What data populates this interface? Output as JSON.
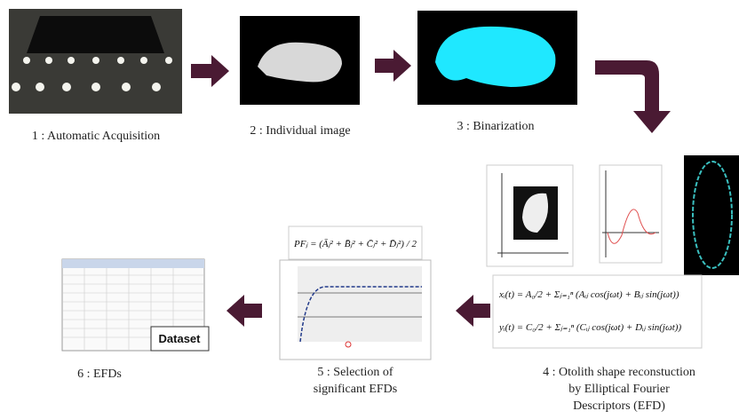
{
  "steps": [
    {
      "label": "1 : Automatic  Acquisition"
    },
    {
      "label": "2 : Individual image"
    },
    {
      "label": "3 : Binarization"
    },
    {
      "label_lines": [
        "4 : Otolith shape reconstuction",
        "by Elliptical Fourier",
        "Descriptors (EFD)"
      ],
      "formulas": [
        "xᵢ(t) = A₀/2 + Σⱼ₌₁ⁿ (Aᵢⱼ cos(jωt) + Bᵢⱼ sin(jωt))",
        "yᵢ(t) = C₀/2 + Σⱼ₌₁ⁿ (Cᵢⱼ cos(jωt) + Dᵢⱼ sin(jωt))"
      ]
    },
    {
      "label_lines": [
        "5 : Selection of",
        "significant EFDs"
      ],
      "formula": "PFⱼ = (Āⱼ² + B̄ⱼ² + C̄ⱼ² + D̄ⱼ²) / 2"
    },
    {
      "label": "6 : EFDs",
      "badge": "Dataset"
    }
  ]
}
